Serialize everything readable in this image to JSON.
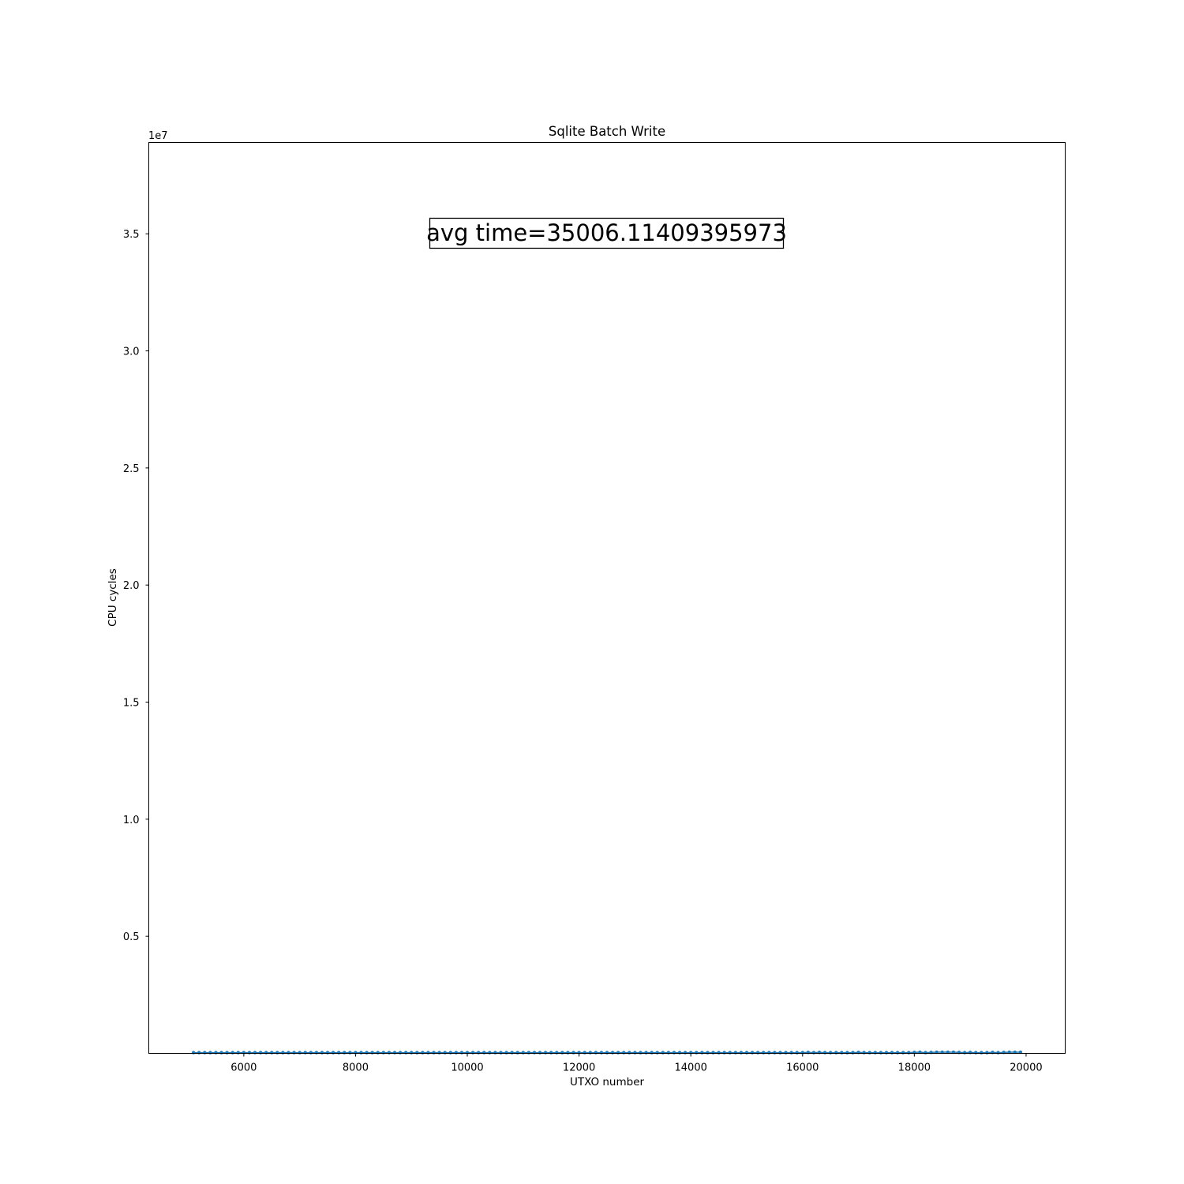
{
  "chart_data": {
    "type": "line",
    "title": "Sqlite Batch Write",
    "xlabel": "UTXO number",
    "ylabel": "CPU cycles",
    "y_offset_label": "1e7",
    "annotation": "avg time=35006.11409395973",
    "xlim": [
      4300,
      20700
    ],
    "ylim": [
      0,
      38900000
    ],
    "x_ticks": [
      6000,
      8000,
      10000,
      12000,
      14000,
      16000,
      18000,
      20000
    ],
    "x_tick_labels": [
      "6000",
      "8000",
      "10000",
      "12000",
      "14000",
      "16000",
      "18000",
      "20000"
    ],
    "y_ticks": [
      5000000,
      10000000,
      15000000,
      20000000,
      25000000,
      30000000,
      35000000
    ],
    "y_tick_labels": [
      "0.5",
      "1.0",
      "1.5",
      "2.0",
      "2.5",
      "3.0",
      "3.5"
    ],
    "grid": false,
    "colors": {
      "series": "#1f77b4"
    },
    "series": [
      {
        "x": [
          5100,
          5200,
          5300,
          5400,
          5500,
          5600,
          5700,
          5800,
          5900,
          6000,
          6100,
          6200,
          6300,
          6400,
          6500,
          6600,
          6700,
          6800,
          6900,
          7000,
          7100,
          7200,
          7300,
          7400,
          7500,
          7600,
          7700,
          7800,
          7900,
          8000,
          8100,
          8200,
          8300,
          8400,
          8500,
          8600,
          8700,
          8800,
          8900,
          9000,
          9100,
          9200,
          9300,
          9400,
          9500,
          9600,
          9700,
          9800,
          9900,
          10000,
          10100,
          10200,
          10300,
          10400,
          10500,
          10600,
          10700,
          10800,
          10900,
          11000,
          11100,
          11200,
          11300,
          11400,
          11500,
          11600,
          11700,
          11800,
          11900,
          12000,
          12100,
          12200,
          12300,
          12400,
          12500,
          12600,
          12700,
          12800,
          12900,
          13000,
          13100,
          13200,
          13300,
          13400,
          13500,
          13600,
          13700,
          13800,
          13900,
          14000,
          14100,
          14200,
          14300,
          14400,
          14500,
          14600,
          14700,
          14800,
          14900,
          15000,
          15100,
          15200,
          15300,
          15400,
          15500,
          15600,
          15700,
          15800,
          15900,
          16000,
          16100,
          16200,
          16300,
          16400,
          16500,
          16600,
          16700,
          16800,
          16900,
          17000,
          17100,
          17200,
          17300,
          17400,
          17500,
          17600,
          17700,
          17800,
          17900,
          18000,
          18100,
          18200,
          18300,
          18400,
          18500,
          18600,
          18700,
          18800,
          18900,
          19000,
          19100,
          19200,
          19300,
          19400,
          19500,
          19600,
          19700,
          19800,
          19900
        ],
        "y": [
          30000,
          30000,
          30000,
          30000,
          30000,
          30000,
          30000,
          30000,
          30000,
          30000,
          30000,
          30000,
          30000,
          30000,
          30000,
          30000,
          30000,
          30000,
          30000,
          30000,
          30000,
          30000,
          30000,
          30000,
          30000,
          30000,
          30000,
          30000,
          30000,
          30000,
          30000,
          30000,
          30000,
          30000,
          30000,
          30000,
          30000,
          30000,
          30000,
          30000,
          30000,
          30000,
          30000,
          30000,
          30000,
          30000,
          30000,
          30000,
          30000,
          30000,
          30000,
          30000,
          30000,
          30000,
          30000,
          30000,
          30000,
          30000,
          30000,
          30000,
          30000,
          30000,
          30000,
          30000,
          30000,
          30000,
          30000,
          30000,
          30000,
          30000,
          30000,
          30000,
          30000,
          30000,
          30000,
          30000,
          30000,
          30000,
          30000,
          30000,
          30000,
          30000,
          30000,
          30000,
          30000,
          30000,
          30000,
          30000,
          30000,
          30000,
          30000,
          30000,
          30000,
          30000,
          30000,
          30000,
          30000,
          30000,
          30000,
          30000,
          30000,
          30000,
          30000,
          30000,
          30000,
          30000,
          30000,
          30000,
          30000,
          30000,
          40000,
          30000,
          40000,
          30000,
          30000,
          30000,
          30000,
          30000,
          30000,
          40000,
          30000,
          30000,
          30000,
          30000,
          30000,
          30000,
          30000,
          30000,
          30000,
          40000,
          50000,
          30000,
          40000,
          50000,
          50000,
          50000,
          50000,
          40000,
          30000,
          40000,
          30000,
          30000,
          30000,
          40000,
          30000,
          40000,
          50000,
          50000,
          50000
        ]
      }
    ]
  }
}
